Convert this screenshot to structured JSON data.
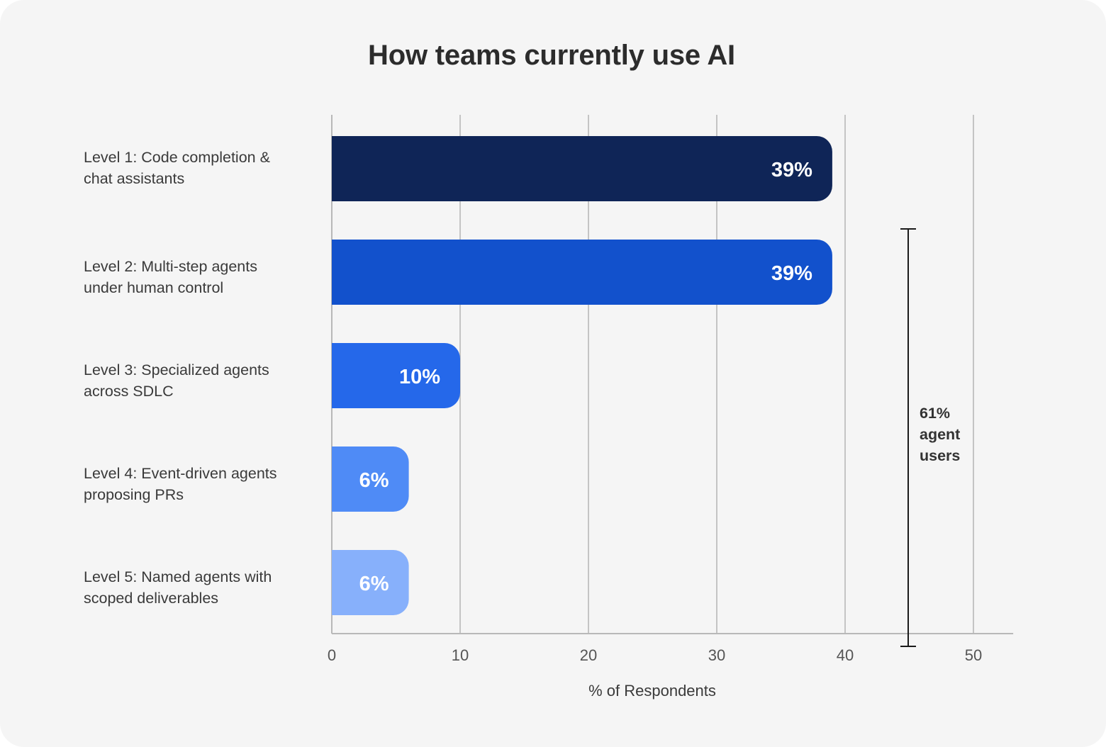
{
  "chart_data": {
    "type": "bar",
    "orientation": "horizontal",
    "title": "How teams currently use AI",
    "xlabel": "% of Respondents",
    "ylabel": "",
    "xlim": [
      0,
      53
    ],
    "xticks": [
      0,
      10,
      20,
      30,
      40,
      50
    ],
    "grid": true,
    "categories": [
      [
        "Level 1: Code completion &",
        "chat assistants"
      ],
      [
        "Level 2: Multi-step agents",
        "under human control"
      ],
      [
        "Level 3: Specialized agents",
        "across SDLC"
      ],
      [
        "Level 4: Event-driven agents",
        "proposing PRs"
      ],
      [
        "Level 5: Named agents with",
        "scoped deliverables"
      ]
    ],
    "values": [
      39,
      39,
      10,
      6,
      6
    ],
    "data_labels": [
      "39%",
      "39%",
      "10%",
      "6%",
      "6%"
    ],
    "colors": [
      "#0f2557",
      "#1251cc",
      "#2568ea",
      "#4f8bf6",
      "#87b0fb"
    ],
    "annotation": {
      "text": [
        "61%",
        "agent",
        "users"
      ],
      "span_categories": [
        "Level 2: Multi-step agents under human control",
        "Level 5: Named agents with scoped deliverables"
      ]
    }
  }
}
